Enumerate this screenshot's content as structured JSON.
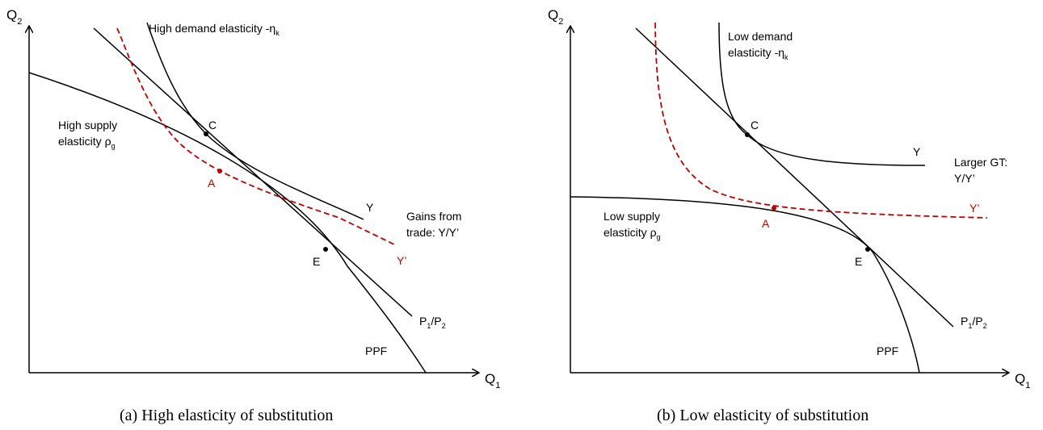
{
  "colors": {
    "black": "#000000",
    "red": "#c00000"
  },
  "panel_a": {
    "caption": "(a)  High elasticity of substitution",
    "axis_y": "Q",
    "axis_y_sub": "2",
    "axis_x": "Q",
    "axis_x_sub": "1",
    "demand_label": "High demand elasticity -η",
    "demand_sub": "k",
    "supply_label_1": "High supply",
    "supply_label_2": "elasticity ρ",
    "supply_sub": "g",
    "point_c": "C",
    "point_a": "A",
    "point_e": "E",
    "curve_y": "Y",
    "curve_y_prime": "Y’",
    "gains_1": "Gains from",
    "gains_2": "trade: Y/Y’",
    "price_p1": "P",
    "price_p1_sub": "1",
    "price_slash": "/P",
    "price_p2_sub": "2",
    "ppf": "PPF"
  },
  "panel_b": {
    "caption": "(b)  Low elasticity of substitution",
    "axis_y": "Q",
    "axis_y_sub": "2",
    "axis_x": "Q",
    "axis_x_sub": "1",
    "demand_label_1": "Low demand",
    "demand_label_2": "elasticity -η",
    "demand_sub": "k",
    "supply_label_1": "Low supply",
    "supply_label_2": "elasticity ρ",
    "supply_sub": "g",
    "point_c": "C",
    "point_a": "A",
    "point_e": "E",
    "curve_y": "Y",
    "curve_y_prime": "Y’",
    "gt_1": "Larger GT:",
    "gt_2": "Y/Y’",
    "price_p1": "P",
    "price_p1_sub": "1",
    "price_slash": "/P",
    "price_p2_sub": "2",
    "ppf": "PPF"
  }
}
